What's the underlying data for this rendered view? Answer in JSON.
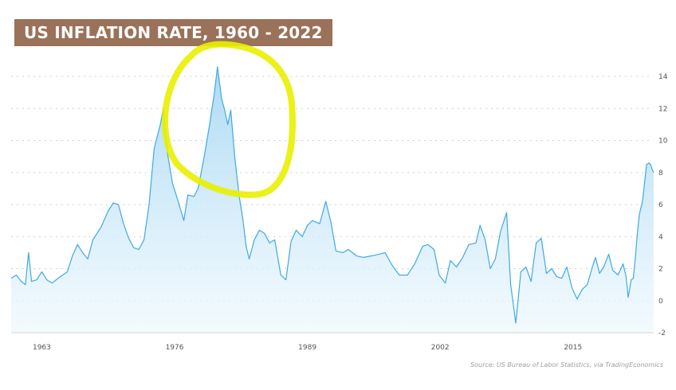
{
  "chart_data": {
    "type": "area",
    "title": "US INFLATION RATE, 1960 - 2022",
    "source": "Source: US Bureau of Labor Statistics, via TradingEconomics",
    "x_ticks": [
      "1963",
      "1976",
      "1989",
      "2002",
      "2015"
    ],
    "y_ticks": [
      "14",
      "12",
      "10",
      "8",
      "6",
      "4",
      "2",
      "0",
      "-2"
    ],
    "xlim": [
      1960,
      2022.9
    ],
    "ylim": [
      -2,
      14
    ],
    "grid": true,
    "series": [
      {
        "color": "#3fa9e6",
        "points": [
          [
            1960.0,
            1.4
          ],
          [
            1960.5,
            1.6
          ],
          [
            1961.0,
            1.2
          ],
          [
            1961.4,
            1.0
          ],
          [
            1961.7,
            3.0
          ],
          [
            1962.0,
            1.2
          ],
          [
            1962.5,
            1.3
          ],
          [
            1963.0,
            1.8
          ],
          [
            1963.5,
            1.3
          ],
          [
            1964.0,
            1.1
          ],
          [
            1964.8,
            1.5
          ],
          [
            1965.5,
            1.8
          ],
          [
            1966.0,
            2.8
          ],
          [
            1966.5,
            3.5
          ],
          [
            1967.0,
            3.0
          ],
          [
            1967.5,
            2.6
          ],
          [
            1968.0,
            3.8
          ],
          [
            1968.8,
            4.6
          ],
          [
            1969.5,
            5.6
          ],
          [
            1970.0,
            6.1
          ],
          [
            1970.5,
            6.0
          ],
          [
            1971.0,
            4.8
          ],
          [
            1971.5,
            3.9
          ],
          [
            1972.0,
            3.3
          ],
          [
            1972.5,
            3.2
          ],
          [
            1973.0,
            3.8
          ],
          [
            1973.5,
            6.0
          ],
          [
            1974.0,
            9.5
          ],
          [
            1974.6,
            11.0
          ],
          [
            1974.9,
            12.0
          ],
          [
            1975.3,
            9.2
          ],
          [
            1975.8,
            7.3
          ],
          [
            1976.3,
            6.3
          ],
          [
            1976.9,
            5.0
          ],
          [
            1977.3,
            6.6
          ],
          [
            1977.9,
            6.5
          ],
          [
            1978.3,
            7.0
          ],
          [
            1978.9,
            9.0
          ],
          [
            1979.4,
            10.9
          ],
          [
            1979.9,
            13.0
          ],
          [
            1980.2,
            14.6
          ],
          [
            1980.6,
            12.6
          ],
          [
            1980.9,
            11.9
          ],
          [
            1981.2,
            11.0
          ],
          [
            1981.5,
            11.9
          ],
          [
            1981.9,
            8.9
          ],
          [
            1982.3,
            6.6
          ],
          [
            1982.7,
            5.0
          ],
          [
            1983.0,
            3.4
          ],
          [
            1983.3,
            2.6
          ],
          [
            1983.8,
            3.8
          ],
          [
            1984.3,
            4.4
          ],
          [
            1984.8,
            4.2
          ],
          [
            1985.3,
            3.6
          ],
          [
            1985.8,
            3.8
          ],
          [
            1986.4,
            1.6
          ],
          [
            1986.9,
            1.3
          ],
          [
            1987.4,
            3.7
          ],
          [
            1987.9,
            4.4
          ],
          [
            1988.5,
            4.0
          ],
          [
            1989.0,
            4.7
          ],
          [
            1989.5,
            5.0
          ],
          [
            1990.2,
            4.8
          ],
          [
            1990.8,
            6.2
          ],
          [
            1991.3,
            4.9
          ],
          [
            1991.8,
            3.1
          ],
          [
            1992.5,
            3.0
          ],
          [
            1993.0,
            3.2
          ],
          [
            1993.8,
            2.8
          ],
          [
            1994.5,
            2.7
          ],
          [
            1995.3,
            2.8
          ],
          [
            1996.0,
            2.9
          ],
          [
            1996.6,
            3.0
          ],
          [
            1997.3,
            2.2
          ],
          [
            1998.0,
            1.6
          ],
          [
            1998.8,
            1.6
          ],
          [
            1999.5,
            2.3
          ],
          [
            2000.3,
            3.4
          ],
          [
            2000.8,
            3.5
          ],
          [
            2001.4,
            3.2
          ],
          [
            2001.9,
            1.6
          ],
          [
            2002.5,
            1.1
          ],
          [
            2003.0,
            2.5
          ],
          [
            2003.6,
            2.1
          ],
          [
            2004.2,
            2.7
          ],
          [
            2004.8,
            3.5
          ],
          [
            2005.5,
            3.6
          ],
          [
            2005.9,
            4.7
          ],
          [
            2006.4,
            3.8
          ],
          [
            2006.9,
            2.0
          ],
          [
            2007.4,
            2.6
          ],
          [
            2007.9,
            4.3
          ],
          [
            2008.5,
            5.5
          ],
          [
            2008.9,
            1.0
          ],
          [
            2009.4,
            -1.4
          ],
          [
            2009.9,
            1.8
          ],
          [
            2010.4,
            2.1
          ],
          [
            2010.9,
            1.2
          ],
          [
            2011.4,
            3.6
          ],
          [
            2011.9,
            3.9
          ],
          [
            2012.4,
            1.7
          ],
          [
            2012.9,
            2.0
          ],
          [
            2013.4,
            1.5
          ],
          [
            2013.9,
            1.4
          ],
          [
            2014.4,
            2.1
          ],
          [
            2014.9,
            0.8
          ],
          [
            2015.4,
            0.1
          ],
          [
            2015.9,
            0.7
          ],
          [
            2016.4,
            1.0
          ],
          [
            2016.9,
            2.1
          ],
          [
            2017.2,
            2.7
          ],
          [
            2017.6,
            1.7
          ],
          [
            2018.0,
            2.1
          ],
          [
            2018.5,
            2.9
          ],
          [
            2018.9,
            1.9
          ],
          [
            2019.4,
            1.6
          ],
          [
            2019.9,
            2.3
          ],
          [
            2020.2,
            1.5
          ],
          [
            2020.4,
            0.2
          ],
          [
            2020.7,
            1.3
          ],
          [
            2020.9,
            1.4
          ],
          [
            2021.1,
            2.6
          ],
          [
            2021.3,
            4.2
          ],
          [
            2021.5,
            5.4
          ],
          [
            2021.8,
            6.2
          ],
          [
            2021.95,
            7.0
          ],
          [
            2022.2,
            8.5
          ],
          [
            2022.45,
            8.6
          ],
          [
            2022.6,
            8.5
          ],
          [
            2022.75,
            8.2
          ],
          [
            2022.9,
            8.0
          ]
        ]
      }
    ]
  }
}
